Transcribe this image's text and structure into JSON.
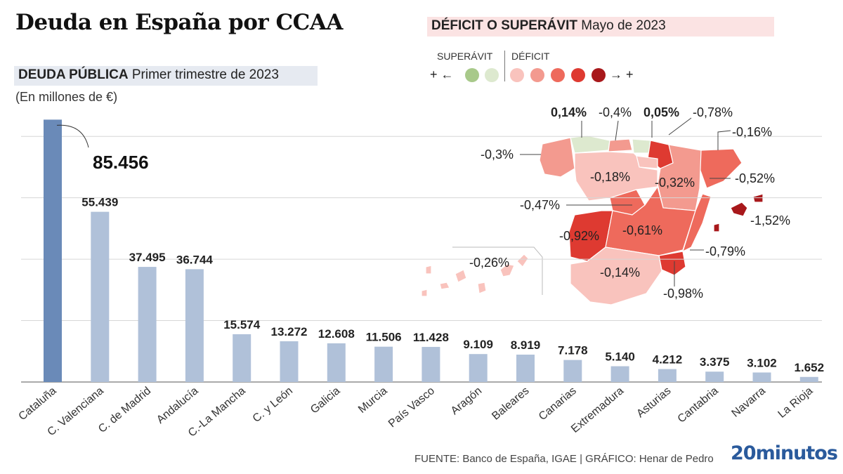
{
  "title": "Deuda en España por CCAA",
  "debt_section": {
    "label_bold": "DEUDA PÚBLICA",
    "label_rest": " Primer trimestre de 2023",
    "units": "(En millones de €)"
  },
  "deficit_section": {
    "label_bold": "DÉFICIT O SUPERÁVIT",
    "label_rest": " Mayo de 2023",
    "legend": {
      "surplus_label": "SUPERÁVIT",
      "deficit_label": "DÉFICIT",
      "left_symbol": "+ ←",
      "right_symbol": "→ +",
      "surplus_colors": [
        "#a8c98a",
        "#dde9cf"
      ],
      "deficit_colors": [
        "#f9c3bd",
        "#f39a8f",
        "#ee6a5c",
        "#de3a31",
        "#a8181b"
      ]
    }
  },
  "chart_data": {
    "type": "bar",
    "categories": [
      "Cataluña",
      "C. Valenciana",
      "C. de Madrid",
      "Andalucía",
      "C.-La Mancha",
      "C. y León",
      "Galicia",
      "Murcia",
      "País Vasco",
      "Aragón",
      "Baleares",
      "Canarias",
      "Extremadura",
      "Asturias",
      "Cantabria",
      "Navarra",
      "La Rioja"
    ],
    "values": [
      85456,
      55439,
      37495,
      36744,
      15574,
      13272,
      12608,
      11506,
      11428,
      9109,
      8919,
      7178,
      5140,
      4212,
      3375,
      3102,
      1652
    ],
    "value_labels": [
      "85.456",
      "55.439",
      "37.495",
      "36.744",
      "15.574",
      "13.272",
      "12.608",
      "11.506",
      "11.428",
      "9.109",
      "8.919",
      "7.178",
      "5.140",
      "4.212",
      "3.375",
      "3.102",
      "1.652"
    ],
    "title": "Deuda en España por CCAA",
    "xlabel": "",
    "ylabel": "",
    "ylim": [
      0,
      86000
    ],
    "grid": true,
    "colors": {
      "highlight": "#6a8ab8",
      "default": "#b0c1d9"
    }
  },
  "map_data": {
    "type": "choropleth",
    "regions": [
      {
        "name": "Asturias",
        "value_label": "0,14%",
        "bold": true,
        "color": "#dde9cf"
      },
      {
        "name": "Cantabria",
        "value_label": "-0,4%",
        "bold": false,
        "color": "#f39a8f"
      },
      {
        "name": "País Vasco",
        "value_label": "0,05%",
        "bold": true,
        "color": "#dde9cf"
      },
      {
        "name": "Navarra",
        "value_label": "-0,78%",
        "bold": false,
        "color": "#de3a31"
      },
      {
        "name": "La Rioja",
        "value_label": "-0,16%",
        "bold": false,
        "color": "#f9c3bd"
      },
      {
        "name": "Galicia",
        "value_label": "-0,3%",
        "bold": false,
        "color": "#f39a8f"
      },
      {
        "name": "C. y León",
        "value_label": "-0,18%",
        "bold": false,
        "color": "#f9c3bd"
      },
      {
        "name": "Aragón",
        "value_label": "-0,32%",
        "bold": false,
        "color": "#f39a8f"
      },
      {
        "name": "Cataluña",
        "value_label": "-0,52%",
        "bold": false,
        "color": "#ee6a5c"
      },
      {
        "name": "C. de Madrid",
        "value_label": "-0,47%",
        "bold": false,
        "color": "#ee6a5c"
      },
      {
        "name": "Baleares",
        "value_label": "-1,52%",
        "bold": false,
        "color": "#a8181b"
      },
      {
        "name": "Extremadura",
        "value_label": "-0,92%",
        "bold": false,
        "color": "#de3a31"
      },
      {
        "name": "C.-La Mancha",
        "value_label": "-0,61%",
        "bold": false,
        "color": "#ee6a5c"
      },
      {
        "name": "C. Valenciana",
        "value_label": "-0,79%",
        "bold": false,
        "color": "#ee6a5c"
      },
      {
        "name": "Canarias",
        "value_label": "-0,26%",
        "bold": false,
        "color": "#f9c3bd"
      },
      {
        "name": "Andalucía",
        "value_label": "-0,14%",
        "bold": false,
        "color": "#f9c3bd"
      },
      {
        "name": "Murcia",
        "value_label": "-0,98%",
        "bold": false,
        "color": "#de3a31"
      }
    ]
  },
  "footer": {
    "source": "FUENTE: Banco de España, IGAE   |  GRÁFICO: Henar de Pedro",
    "brand": "20minutos"
  }
}
